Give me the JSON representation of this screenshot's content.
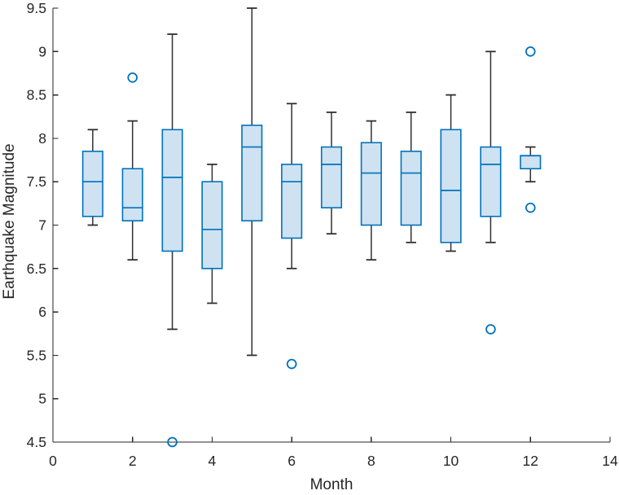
{
  "figure": {
    "xlabel": "Month",
    "ylabel": "Earthquake Magnitude"
  },
  "chart_data": {
    "type": "boxplot",
    "title": "",
    "xlabel": "Month",
    "ylabel": "Earthquake Magnitude",
    "xlim": [
      0,
      14
    ],
    "ylim": [
      4.5,
      9.5
    ],
    "x_ticks": [
      0,
      2,
      4,
      6,
      8,
      10,
      12,
      14
    ],
    "y_ticks": [
      4.5,
      5,
      5.5,
      6,
      6.5,
      7,
      7.5,
      8,
      8.5,
      9,
      9.5
    ],
    "grid": false,
    "legend": null,
    "colors": {
      "box_fill": "#CEE2F2",
      "box_edge": "#0072BD",
      "median": "#0072BD",
      "whisker": "#303030",
      "outlier": "#0072BD",
      "axis": "#262626",
      "label": "#262626"
    },
    "boxes": [
      {
        "month": 1,
        "whisker_low": 7.0,
        "q1": 7.1,
        "median": 7.5,
        "q3": 7.85,
        "whisker_high": 8.1,
        "outliers": []
      },
      {
        "month": 2,
        "whisker_low": 6.6,
        "q1": 7.05,
        "median": 7.2,
        "q3": 7.65,
        "whisker_high": 8.2,
        "outliers": [
          8.7
        ]
      },
      {
        "month": 3,
        "whisker_low": 5.8,
        "q1": 6.7,
        "median": 7.55,
        "q3": 8.1,
        "whisker_high": 9.2,
        "outliers": [
          4.5
        ]
      },
      {
        "month": 4,
        "whisker_low": 6.1,
        "q1": 6.5,
        "median": 6.95,
        "q3": 7.5,
        "whisker_high": 7.7,
        "outliers": []
      },
      {
        "month": 5,
        "whisker_low": 5.5,
        "q1": 7.05,
        "median": 7.9,
        "q3": 8.15,
        "whisker_high": 9.5,
        "outliers": []
      },
      {
        "month": 6,
        "whisker_low": 6.5,
        "q1": 6.85,
        "median": 7.5,
        "q3": 7.7,
        "whisker_high": 8.4,
        "outliers": [
          5.4
        ]
      },
      {
        "month": 7,
        "whisker_low": 6.9,
        "q1": 7.2,
        "median": 7.7,
        "q3": 7.9,
        "whisker_high": 8.3,
        "outliers": []
      },
      {
        "month": 8,
        "whisker_low": 6.6,
        "q1": 7.0,
        "median": 7.6,
        "q3": 7.95,
        "whisker_high": 8.2,
        "outliers": []
      },
      {
        "month": 9,
        "whisker_low": 6.8,
        "q1": 7.0,
        "median": 7.6,
        "q3": 7.85,
        "whisker_high": 8.3,
        "outliers": []
      },
      {
        "month": 10,
        "whisker_low": 6.7,
        "q1": 6.8,
        "median": 7.4,
        "q3": 8.1,
        "whisker_high": 8.5,
        "outliers": []
      },
      {
        "month": 11,
        "whisker_low": 6.8,
        "q1": 7.1,
        "median": 7.7,
        "q3": 7.9,
        "whisker_high": 9.0,
        "outliers": [
          5.8
        ]
      },
      {
        "month": 12,
        "whisker_low": 7.5,
        "q1": 7.65,
        "median": 7.8,
        "q3": 7.8,
        "whisker_high": 7.9,
        "outliers": [
          9.0,
          7.2
        ]
      }
    ]
  }
}
